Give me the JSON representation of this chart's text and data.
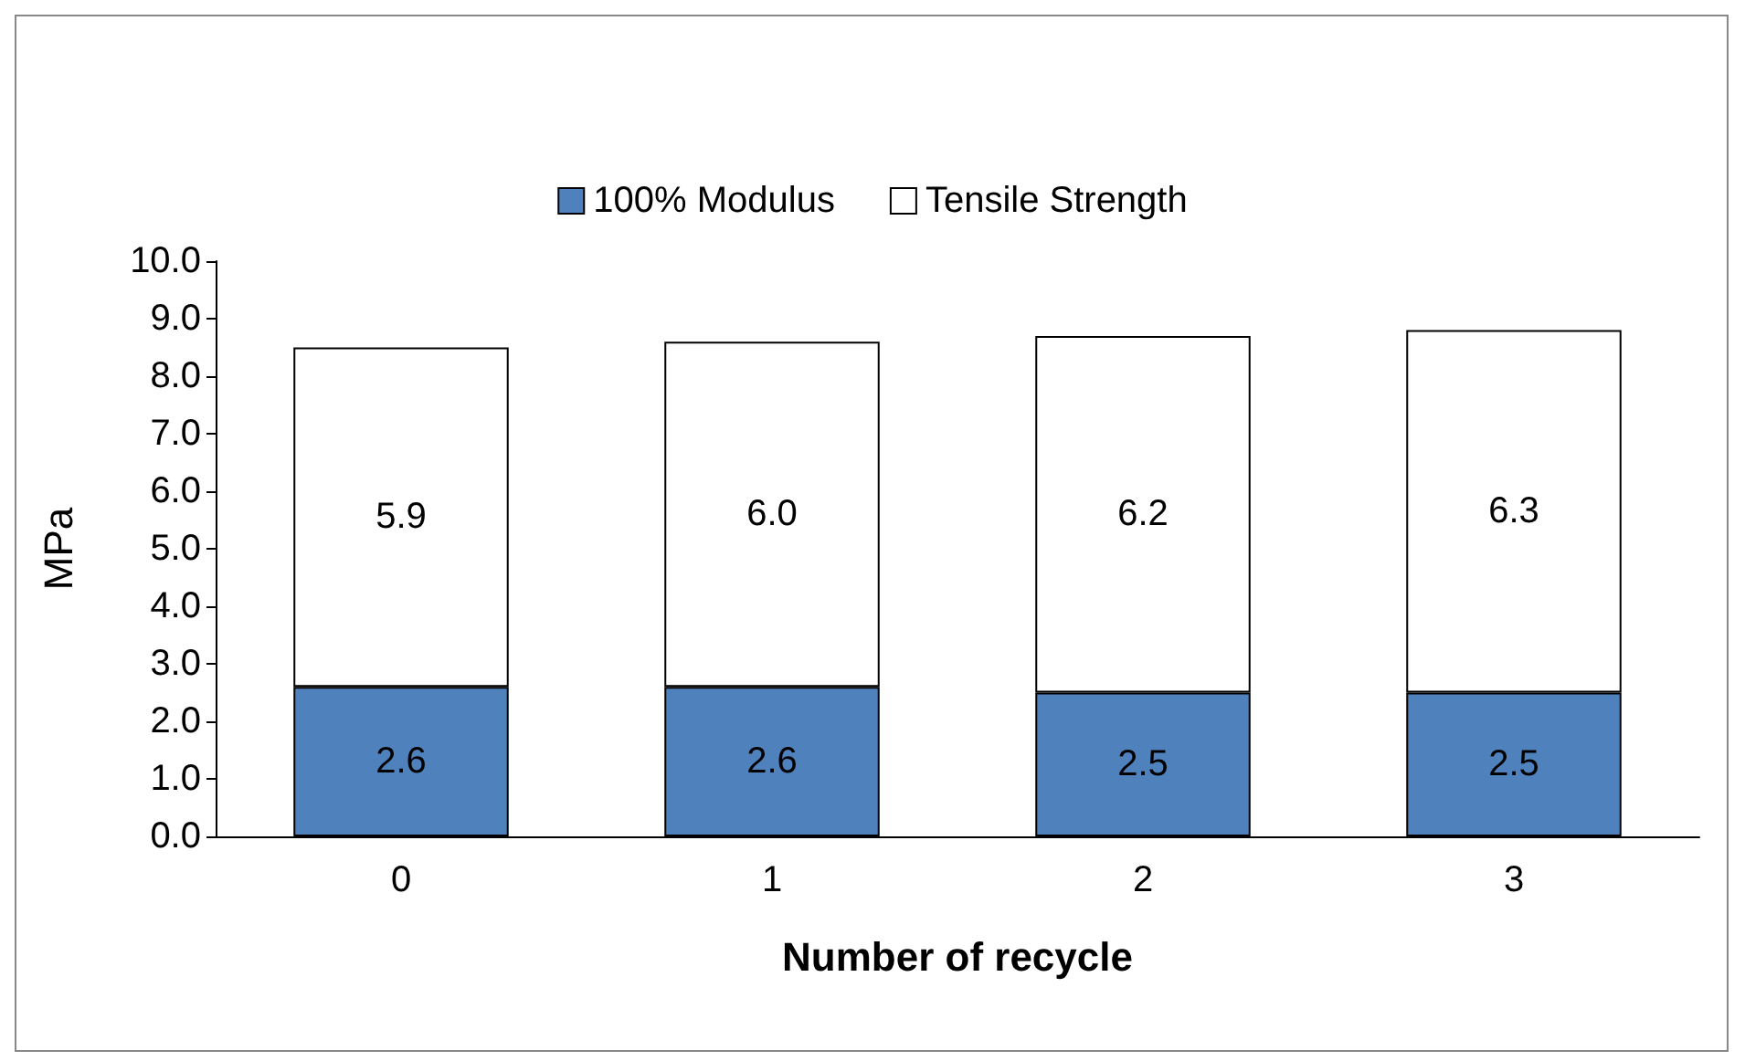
{
  "chart_data": {
    "type": "bar",
    "stacked": true,
    "xlabel": "Number of recycle",
    "ylabel": "MPa",
    "categories": [
      "0",
      "1",
      "2",
      "3"
    ],
    "series": [
      {
        "name": "100% Modulus",
        "color": "#4f81bd",
        "values": [
          2.6,
          2.6,
          2.5,
          2.5
        ],
        "value_labels": [
          "2.6",
          "2.6",
          "2.5",
          "2.5"
        ]
      },
      {
        "name": "Tensile Strength",
        "color": "#ffffff",
        "values": [
          5.9,
          6.0,
          6.2,
          6.3
        ],
        "value_labels": [
          "5.9",
          "6.0",
          "6.2",
          "6.3"
        ]
      }
    ],
    "ylim": [
      0,
      10
    ],
    "yticks": [
      {
        "value": 0,
        "label": "0.0"
      },
      {
        "value": 1,
        "label": "1.0"
      },
      {
        "value": 2,
        "label": "2.0"
      },
      {
        "value": 3,
        "label": "3.0"
      },
      {
        "value": 4,
        "label": "4.0"
      },
      {
        "value": 5,
        "label": "5.0"
      },
      {
        "value": 6,
        "label": "6.0"
      },
      {
        "value": 7,
        "label": "7.0"
      },
      {
        "value": 8,
        "label": "8.0"
      },
      {
        "value": 9,
        "label": "9.0"
      },
      {
        "value": 10,
        "label": "10.0"
      }
    ],
    "grid": false,
    "legend": "top"
  }
}
